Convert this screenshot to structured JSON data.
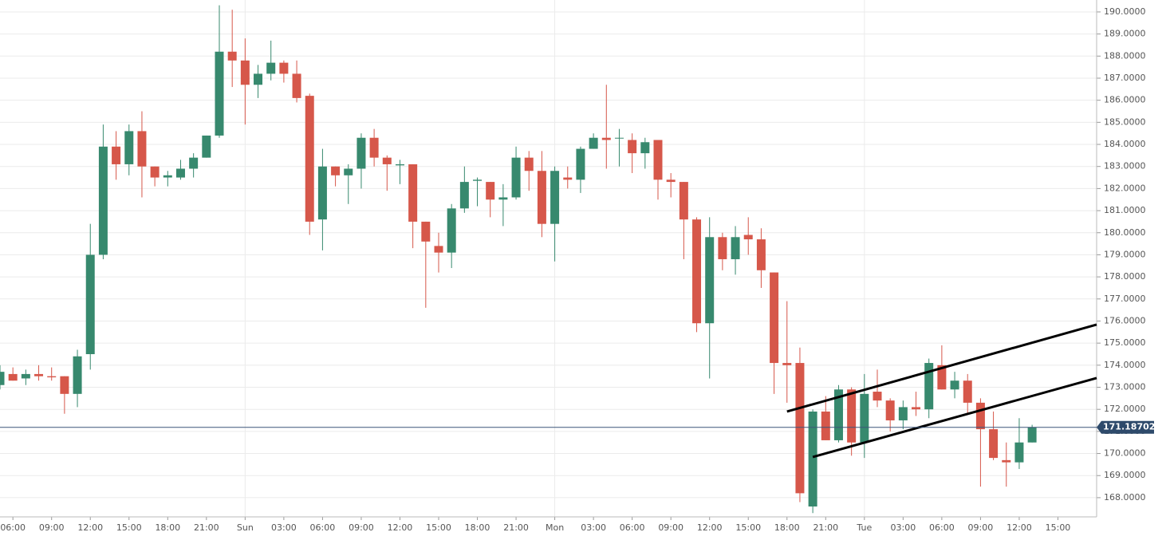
{
  "chart_data": {
    "type": "candlestick",
    "categories": [
      null,
      "06:00",
      null,
      null,
      "09:00",
      null,
      null,
      "12:00",
      null,
      null,
      "15:00",
      null,
      null,
      "18:00",
      null,
      null,
      "21:00",
      null,
      null,
      "Sun",
      null,
      null,
      "03:00",
      null,
      null,
      "06:00",
      null,
      null,
      "09:00",
      null,
      null,
      "12:00",
      null,
      null,
      "15:00",
      null,
      null,
      "18:00",
      null,
      null,
      "21:00",
      null,
      null,
      "Mon",
      null,
      null,
      "03:00",
      null,
      null,
      "06:00",
      null,
      null,
      "09:00",
      null,
      null,
      "12:00",
      null,
      null,
      "15:00",
      null,
      null,
      "18:00",
      null,
      null,
      "21:00",
      null,
      null,
      "Tue",
      null,
      null,
      "03:00",
      null,
      null,
      "06:00",
      null,
      null,
      "09:00",
      null,
      null,
      "12:00",
      null,
      null,
      "15:00",
      null,
      null,
      null
    ],
    "open": [
      173.1,
      173.6,
      173.4,
      173.6,
      173.5,
      173.5,
      172.7,
      174.5,
      179.0,
      183.9,
      183.1,
      184.6,
      183.0,
      182.5,
      182.5,
      182.9,
      183.4,
      184.4,
      188.2,
      187.8,
      186.7,
      187.2,
      187.7,
      187.2,
      186.2,
      180.6,
      183.0,
      182.6,
      182.9,
      184.3,
      183.4,
      183.05,
      183.1,
      180.5,
      179.4,
      179.1,
      181.1,
      182.35,
      182.3,
      181.5,
      181.6,
      183.4,
      182.8,
      180.4,
      182.5,
      182.4,
      183.8,
      184.3,
      184.3,
      184.2,
      183.6,
      184.2,
      182.4,
      182.3,
      180.6,
      175.9,
      179.8,
      178.8,
      179.9,
      179.7,
      178.2,
      174.1,
      174.1,
      167.6,
      171.9,
      170.6,
      172.9,
      170.5,
      172.8,
      172.4,
      171.5,
      172.1,
      172.0,
      174.0,
      172.9,
      173.3,
      172.3,
      171.1,
      169.7,
      169.6,
      170.5,
      null,
      null,
      null,
      null,
      null
    ],
    "high": [
      174.0,
      173.9,
      173.8,
      174.0,
      173.9,
      173.5,
      174.7,
      180.4,
      184.9,
      184.6,
      184.9,
      185.5,
      183.0,
      182.8,
      183.3,
      183.6,
      184.4,
      190.3,
      190.1,
      188.8,
      187.6,
      188.7,
      187.8,
      187.8,
      186.3,
      183.8,
      183.0,
      183.1,
      184.5,
      184.7,
      183.5,
      183.3,
      183.1,
      180.5,
      180.0,
      181.3,
      183.0,
      182.5,
      182.3,
      182.2,
      183.9,
      183.7,
      183.7,
      183.0,
      183.0,
      183.9,
      184.5,
      186.7,
      184.7,
      184.5,
      184.3,
      184.2,
      182.7,
      182.3,
      180.7,
      180.7,
      180.0,
      180.3,
      180.7,
      180.2,
      178.2,
      176.9,
      174.8,
      172.0,
      172.6,
      173.1,
      173.0,
      173.6,
      173.8,
      172.5,
      172.4,
      172.8,
      174.3,
      174.9,
      173.7,
      173.6,
      172.5,
      171.9,
      170.5,
      171.6,
      171.3,
      null,
      null,
      null,
      null,
      null
    ],
    "low": [
      172.9,
      173.3,
      173.1,
      173.3,
      173.3,
      171.8,
      172.1,
      173.8,
      178.8,
      182.4,
      182.6,
      181.6,
      182.1,
      182.1,
      182.4,
      182.5,
      183.4,
      184.3,
      186.6,
      184.9,
      186.1,
      186.9,
      186.8,
      185.9,
      179.9,
      179.2,
      182.1,
      181.3,
      182.0,
      183.0,
      181.9,
      182.2,
      179.3,
      176.6,
      178.2,
      178.4,
      180.9,
      181.2,
      180.7,
      180.3,
      181.5,
      181.9,
      179.8,
      178.7,
      182.0,
      181.8,
      183.8,
      182.9,
      183.0,
      182.7,
      182.9,
      181.5,
      181.6,
      178.8,
      175.5,
      173.4,
      178.3,
      178.1,
      179.0,
      177.5,
      172.7,
      172.3,
      167.8,
      167.3,
      170.6,
      170.5,
      169.9,
      169.8,
      172.1,
      171.0,
      171.1,
      171.7,
      171.6,
      172.9,
      172.5,
      171.8,
      168.5,
      169.7,
      168.5,
      169.3,
      170.5,
      null,
      null,
      null,
      null,
      null
    ],
    "close": [
      173.7,
      173.3,
      173.6,
      173.5,
      173.45,
      172.7,
      174.4,
      179.0,
      183.9,
      183.1,
      184.6,
      183.0,
      182.5,
      182.6,
      182.9,
      183.4,
      184.4,
      188.2,
      187.8,
      186.7,
      187.2,
      187.7,
      187.2,
      186.1,
      180.5,
      183.0,
      182.6,
      182.9,
      184.3,
      183.4,
      183.1,
      183.1,
      180.5,
      179.6,
      179.1,
      181.1,
      182.3,
      182.4,
      181.5,
      181.6,
      183.4,
      182.8,
      180.4,
      182.8,
      182.4,
      183.8,
      184.3,
      184.2,
      184.3,
      183.6,
      184.1,
      182.4,
      182.3,
      180.6,
      175.9,
      179.8,
      178.8,
      179.8,
      179.7,
      178.3,
      174.1,
      174.0,
      168.2,
      171.9,
      170.6,
      172.9,
      170.5,
      172.7,
      172.4,
      171.5,
      172.1,
      172.0,
      174.1,
      172.9,
      173.3,
      172.3,
      171.1,
      169.8,
      169.6,
      170.5,
      171.19,
      null,
      null,
      null,
      null,
      null
    ],
    "up_color": "#37896e",
    "down_color": "#d6574a",
    "ylim": [
      167.13,
      190.54
    ],
    "yticks": [
      {
        "value": 168,
        "label": "168.0000"
      },
      {
        "value": 169,
        "label": "169.0000"
      },
      {
        "value": 170,
        "label": "170.0000"
      },
      {
        "value": 171,
        "label": "171.0000"
      },
      {
        "value": 172,
        "label": "172.0000"
      },
      {
        "value": 173,
        "label": "173.0000"
      },
      {
        "value": 174,
        "label": "174.0000"
      },
      {
        "value": 175,
        "label": "175.0000"
      },
      {
        "value": 176,
        "label": "176.0000"
      },
      {
        "value": 177,
        "label": "177.0000"
      },
      {
        "value": 178,
        "label": "178.0000"
      },
      {
        "value": 179,
        "label": "179.0000"
      },
      {
        "value": 180,
        "label": "180.0000"
      },
      {
        "value": 181,
        "label": "181.0000"
      },
      {
        "value": 182,
        "label": "182.0000"
      },
      {
        "value": 183,
        "label": "183.0000"
      },
      {
        "value": 184,
        "label": "184.0000"
      },
      {
        "value": 185,
        "label": "185.0000"
      },
      {
        "value": 186,
        "label": "186.0000"
      },
      {
        "value": 187,
        "label": "187.0000"
      },
      {
        "value": 188,
        "label": "188.0000"
      },
      {
        "value": 189,
        "label": "189.0000"
      },
      {
        "value": 190,
        "label": "190.0000"
      }
    ],
    "grid": true,
    "last_price": 171.18702,
    "trendlines": [
      {
        "x": [
          61,
          85
        ],
        "y": [
          171.9,
          175.84
        ]
      },
      {
        "x": [
          63,
          85
        ],
        "y": [
          169.84,
          173.42
        ]
      }
    ]
  }
}
